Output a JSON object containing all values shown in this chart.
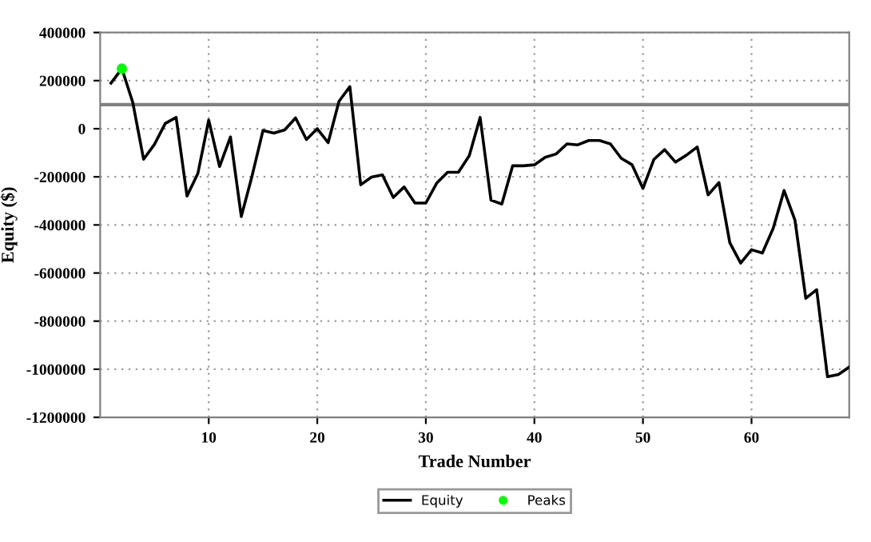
{
  "chart_data": {
    "type": "line",
    "xlabel": "Trade Number",
    "ylabel": "Equity ($)",
    "xlim": [
      0,
      69
    ],
    "xticks": [
      10,
      20,
      30,
      40,
      50,
      60
    ],
    "ylim": [
      -1200000,
      400000
    ],
    "yticks": [
      -1200000,
      -1000000,
      -800000,
      -600000,
      -400000,
      -200000,
      0,
      200000,
      400000
    ],
    "grid": true,
    "legend": "bottom",
    "ref_lines": [
      {
        "axis": "y",
        "value": 100000,
        "color": "#808080"
      }
    ],
    "series": [
      {
        "name": "Equity",
        "color": "#000000",
        "marker": "none",
        "x": [
          1,
          2,
          3,
          4,
          5,
          6,
          7,
          8,
          9,
          10,
          11,
          12,
          13,
          14,
          15,
          16,
          17,
          18,
          19,
          20,
          21,
          22,
          23,
          24,
          25,
          26,
          27,
          28,
          29,
          30,
          31,
          32,
          33,
          34,
          35,
          36,
          37,
          38,
          39,
          40,
          41,
          42,
          43,
          44,
          45,
          46,
          47,
          48,
          49,
          50,
          51,
          52,
          53,
          54,
          55,
          56,
          57,
          58,
          59,
          60,
          61,
          62,
          63,
          64,
          65,
          66,
          67,
          68,
          69
        ],
        "values": [
          190000,
          250000,
          110000,
          -127000,
          -65000,
          22000,
          47000,
          -280000,
          -186000,
          36000,
          -157000,
          -34000,
          -365000,
          -195000,
          -7000,
          -18000,
          -5000,
          45000,
          -45000,
          0,
          -58000,
          114000,
          175000,
          -233000,
          -201000,
          -192000,
          -286000,
          -242000,
          -309000,
          -309000,
          -226000,
          -181000,
          -181000,
          -112000,
          47000,
          -297000,
          -313000,
          -154000,
          -154000,
          -150000,
          -119000,
          -105000,
          -63000,
          -67000,
          -49000,
          -49000,
          -63000,
          -123000,
          -150000,
          -248000,
          -128000,
          -87000,
          -139000,
          -110000,
          -76000,
          -275000,
          -224000,
          -474000,
          -559000,
          -503000,
          -517000,
          -414000,
          -257000,
          -380000,
          -705000,
          -669000,
          -1031000,
          -1022000,
          -991000
        ]
      },
      {
        "name": "Peaks",
        "type": "scatter",
        "color": "#00ff00",
        "marker": "circle",
        "x": [
          2
        ],
        "values": [
          250000
        ]
      }
    ]
  }
}
